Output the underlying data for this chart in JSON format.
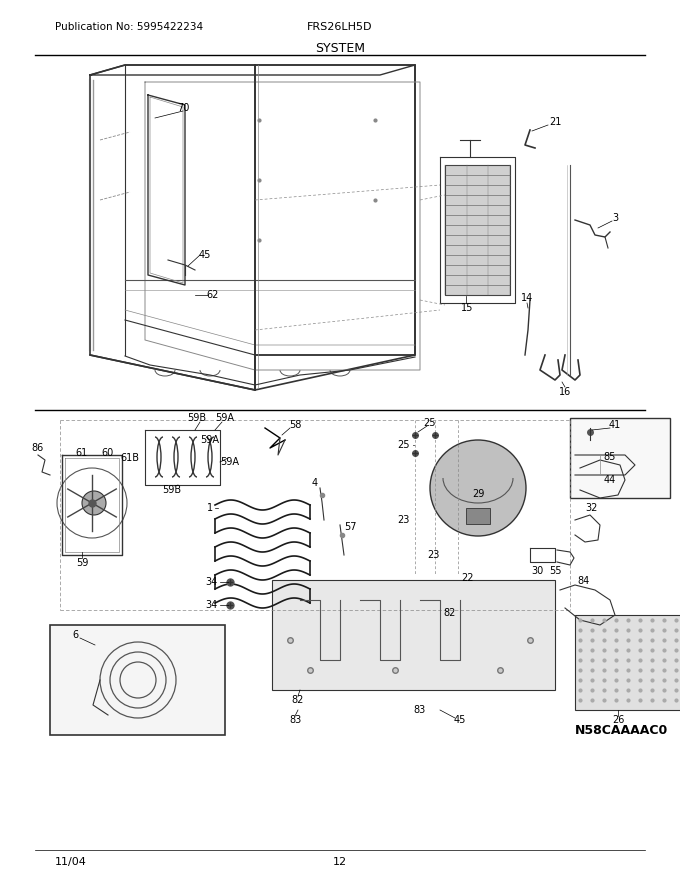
{
  "publication_no": "Publication No: 5995422234",
  "model": "FRS26LH5D",
  "section": "SYSTEM",
  "date": "11/04",
  "page": "12",
  "fig_width": 6.8,
  "fig_height": 8.8,
  "dpi": 100,
  "bg_color": "#ffffff",
  "text_color": "#000000",
  "line_color": "#333333",
  "gray_color": "#888888"
}
